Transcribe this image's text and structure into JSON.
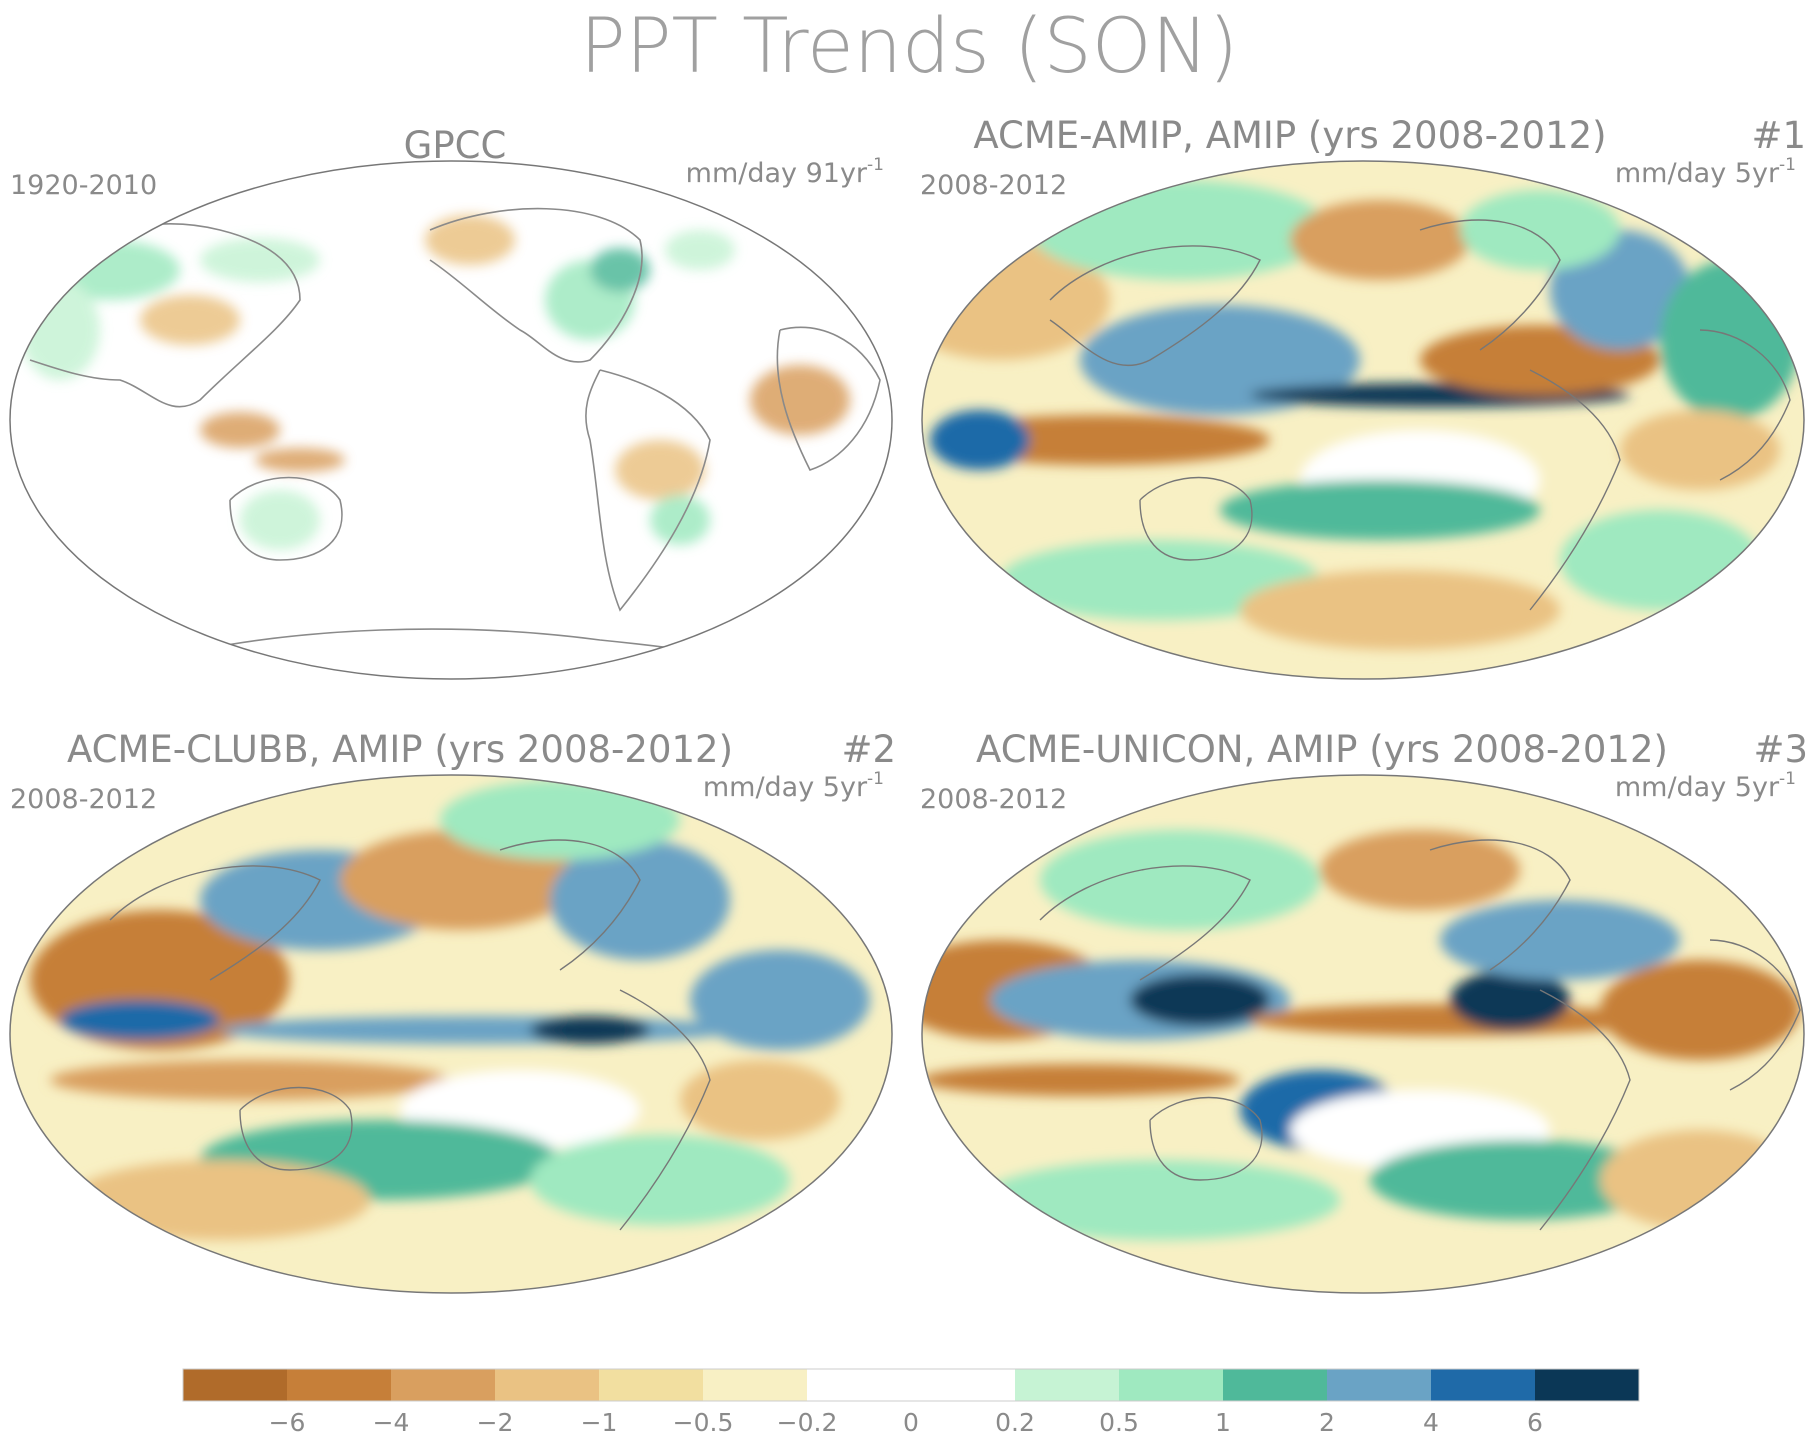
{
  "title": "PPT Trends (SON)",
  "panels": [
    {
      "title": "GPCC",
      "period": "1920-2010",
      "units": "mm/day 91yr",
      "units_sup": "-1",
      "number": "",
      "style": "obs"
    },
    {
      "title": "ACME-AMIP, AMIP (yrs 2008-2012)",
      "period": "2008-2012",
      "units": "mm/day 5yr",
      "units_sup": "-1",
      "number": "#1",
      "style": "model"
    },
    {
      "title": "ACME-CLUBB, AMIP (yrs 2008-2012)",
      "period": "2008-2012",
      "units": "mm/day 5yr",
      "units_sup": "-1",
      "number": "#2",
      "style": "model"
    },
    {
      "title": "ACME-UNICON, AMIP (yrs 2008-2012)",
      "period": "2008-2012",
      "units": "mm/day 5yr",
      "units_sup": "-1",
      "number": "#3",
      "style": "model"
    }
  ],
  "colorbar": {
    "colors": [
      "#b06b2a",
      "#c67f39",
      "#d99f5f",
      "#eac283",
      "#f2dfa0",
      "#f8f0c4",
      "#ffffff",
      "#ffffff",
      "#c6f3d4",
      "#9fe9c0",
      "#4fb99a",
      "#6aa3c5",
      "#1f6aa8",
      "#0b3756"
    ],
    "tick_labels": [
      "−6",
      "−4",
      "−2",
      "−1",
      "−0.5",
      "−0.2",
      "0",
      "0.2",
      "0.5",
      "1",
      "2",
      "4",
      "6"
    ]
  }
}
